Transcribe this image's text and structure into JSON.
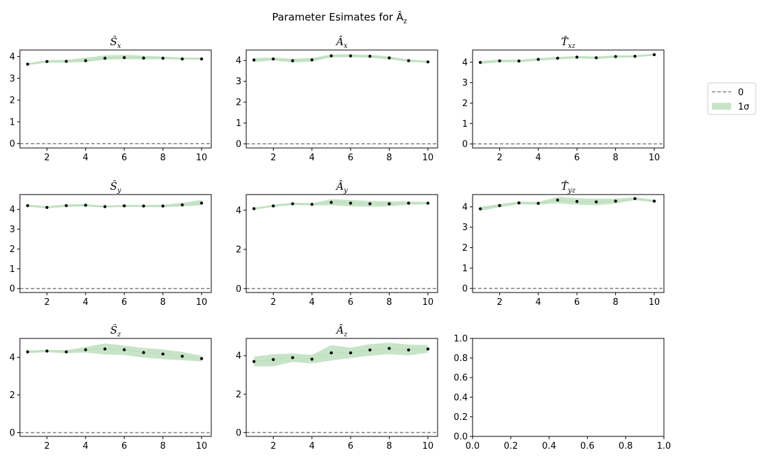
{
  "figure": {
    "title": "Parameter Esimates for Â",
    "title_sub": "z"
  },
  "legend": {
    "items": [
      {
        "label": "0",
        "kind": "dashed-line",
        "color": "#808080"
      },
      {
        "label": "1σ",
        "kind": "band",
        "color": "#c8e4c8"
      }
    ]
  },
  "colors": {
    "band": "#c8e4c8",
    "band_edge": "#b9ddb9",
    "points": "#000000",
    "zero_line": "#808080",
    "axes": "#000000"
  },
  "chart_data": [
    {
      "type": "line",
      "title_main": "Ŝ",
      "title_sub": "x",
      "x": [
        1,
        2,
        3,
        4,
        5,
        6,
        7,
        8,
        9,
        10
      ],
      "values": [
        3.65,
        3.77,
        3.78,
        3.81,
        3.92,
        3.95,
        3.93,
        3.92,
        3.89,
        3.89
      ],
      "band_low": [
        3.6,
        3.72,
        3.72,
        3.75,
        3.85,
        3.88,
        3.87,
        3.88,
        3.86,
        3.86
      ],
      "band_high": [
        3.7,
        3.83,
        3.85,
        3.95,
        4.05,
        4.08,
        4.04,
        4.0,
        3.96,
        3.95
      ],
      "ylim": [
        -0.2,
        4.3
      ],
      "yticks": [
        0,
        1,
        2,
        3,
        4
      ],
      "xlim": [
        0.6,
        10.5
      ],
      "xticks": [
        2,
        4,
        6,
        8,
        10
      ]
    },
    {
      "type": "line",
      "title_main": "Â",
      "title_sub": "x",
      "x": [
        1,
        2,
        3,
        4,
        5,
        6,
        7,
        8,
        9,
        10
      ],
      "values": [
        4.02,
        4.07,
        3.99,
        4.03,
        4.22,
        4.22,
        4.2,
        4.12,
        3.99,
        3.93
      ],
      "band_low": [
        3.92,
        4.0,
        3.9,
        3.94,
        4.15,
        4.15,
        4.13,
        4.05,
        3.93,
        3.88
      ],
      "band_high": [
        4.12,
        4.14,
        4.08,
        4.12,
        4.29,
        4.29,
        4.27,
        4.19,
        4.05,
        3.98
      ],
      "ylim": [
        -0.2,
        4.5
      ],
      "yticks": [
        0,
        1,
        2,
        3,
        4
      ],
      "xlim": [
        0.6,
        10.5
      ],
      "xticks": [
        2,
        4,
        6,
        8,
        10
      ]
    },
    {
      "type": "line",
      "title_main": "T̂",
      "title_sub": "xz",
      "x": [
        1,
        2,
        3,
        4,
        5,
        6,
        7,
        8,
        9,
        10
      ],
      "values": [
        3.99,
        4.07,
        4.06,
        4.14,
        4.2,
        4.25,
        4.22,
        4.28,
        4.29,
        4.37
      ],
      "band_low": [
        3.92,
        4.0,
        4.0,
        4.08,
        4.14,
        4.19,
        4.16,
        4.22,
        4.24,
        4.32
      ],
      "band_high": [
        4.06,
        4.13,
        4.12,
        4.2,
        4.26,
        4.31,
        4.28,
        4.34,
        4.34,
        4.42
      ],
      "ylim": [
        -0.2,
        4.6
      ],
      "yticks": [
        0,
        1,
        2,
        3,
        4
      ],
      "xlim": [
        0.6,
        10.5
      ],
      "xticks": [
        2,
        4,
        6,
        8,
        10
      ]
    },
    {
      "type": "line",
      "title_main": "Ŝ",
      "title_sub": "y",
      "x": [
        1,
        2,
        3,
        4,
        5,
        6,
        7,
        8,
        9,
        10
      ],
      "values": [
        4.19,
        4.1,
        4.19,
        4.21,
        4.14,
        4.18,
        4.17,
        4.17,
        4.23,
        4.32
      ],
      "band_low": [
        4.14,
        4.05,
        4.13,
        4.15,
        4.09,
        4.13,
        4.12,
        4.11,
        4.15,
        4.2
      ],
      "band_high": [
        4.24,
        4.16,
        4.25,
        4.27,
        4.19,
        4.23,
        4.22,
        4.24,
        4.33,
        4.48
      ],
      "ylim": [
        -0.2,
        4.75
      ],
      "yticks": [
        0,
        1,
        2,
        3,
        4
      ],
      "xlim": [
        0.6,
        10.5
      ],
      "xticks": [
        2,
        4,
        6,
        8,
        10
      ]
    },
    {
      "type": "line",
      "title_main": "Â",
      "title_sub": "y",
      "x": [
        1,
        2,
        3,
        4,
        5,
        6,
        7,
        8,
        9,
        10
      ],
      "values": [
        4.08,
        4.22,
        4.33,
        4.3,
        4.4,
        4.36,
        4.33,
        4.33,
        4.36,
        4.36
      ],
      "band_low": [
        4.03,
        4.17,
        4.27,
        4.24,
        4.25,
        4.2,
        4.18,
        4.2,
        4.28,
        4.3
      ],
      "band_high": [
        4.13,
        4.28,
        4.39,
        4.36,
        4.57,
        4.52,
        4.48,
        4.46,
        4.45,
        4.42
      ],
      "ylim": [
        -0.2,
        4.8
      ],
      "yticks": [
        0,
        2,
        4
      ],
      "xlim": [
        0.6,
        10.5
      ],
      "xticks": [
        2,
        4,
        6,
        8,
        10
      ]
    },
    {
      "type": "line",
      "title_main": "T̂",
      "title_sub": "yz",
      "x": [
        1,
        2,
        3,
        4,
        5,
        6,
        7,
        8,
        9,
        10
      ],
      "values": [
        3.9,
        4.06,
        4.19,
        4.17,
        4.33,
        4.26,
        4.24,
        4.28,
        4.4,
        4.28
      ],
      "band_low": [
        3.8,
        3.98,
        4.12,
        4.1,
        4.17,
        4.1,
        4.08,
        4.16,
        4.33,
        4.22
      ],
      "band_high": [
        4.0,
        4.14,
        4.26,
        4.24,
        4.49,
        4.42,
        4.4,
        4.4,
        4.47,
        4.34
      ],
      "ylim": [
        -0.2,
        4.6
      ],
      "yticks": [
        0,
        1,
        2,
        3,
        4
      ],
      "xlim": [
        0.6,
        10.5
      ],
      "xticks": [
        2,
        4,
        6,
        8,
        10
      ]
    },
    {
      "type": "line",
      "title_main": "Ŝ",
      "title_sub": "z",
      "x": [
        1,
        2,
        3,
        4,
        5,
        6,
        7,
        8,
        9,
        10
      ],
      "values": [
        4.29,
        4.33,
        4.29,
        4.4,
        4.44,
        4.4,
        4.25,
        4.17,
        4.05,
        3.93
      ],
      "band_low": [
        4.22,
        4.27,
        4.21,
        4.25,
        4.15,
        4.12,
        3.98,
        3.9,
        3.84,
        3.78
      ],
      "band_high": [
        4.36,
        4.4,
        4.37,
        4.55,
        4.73,
        4.62,
        4.49,
        4.42,
        4.28,
        4.08
      ],
      "ylim": [
        -0.2,
        5.0
      ],
      "yticks": [
        0,
        2,
        4
      ],
      "xlim": [
        0.6,
        10.5
      ],
      "xticks": [
        2,
        4,
        6,
        8,
        10
      ]
    },
    {
      "type": "line",
      "title_main": "Â",
      "title_sub": "z",
      "x": [
        1,
        2,
        3,
        4,
        5,
        6,
        7,
        8,
        9,
        10
      ],
      "values": [
        3.7,
        3.8,
        3.9,
        3.82,
        4.15,
        4.15,
        4.3,
        4.38,
        4.3,
        4.35
      ],
      "band_low": [
        3.45,
        3.45,
        3.68,
        3.6,
        3.75,
        3.88,
        4.0,
        4.08,
        4.02,
        4.15
      ],
      "band_high": [
        3.95,
        4.08,
        4.12,
        4.04,
        4.55,
        4.42,
        4.6,
        4.68,
        4.58,
        4.55
      ],
      "ylim": [
        -0.2,
        4.9
      ],
      "yticks": [
        0,
        2,
        4
      ],
      "xlim": [
        0.6,
        10.5
      ],
      "xticks": [
        2,
        4,
        6,
        8,
        10
      ]
    },
    {
      "type": "empty",
      "xlim": [
        0,
        1
      ],
      "ylim": [
        0,
        1
      ],
      "xtick_labels": [
        "0.0",
        "0.2",
        "0.4",
        "0.6",
        "0.8",
        "1.0"
      ],
      "ytick_labels": [
        "0.0",
        "0.2",
        "0.4",
        "0.6",
        "0.8",
        "1.0"
      ]
    }
  ]
}
